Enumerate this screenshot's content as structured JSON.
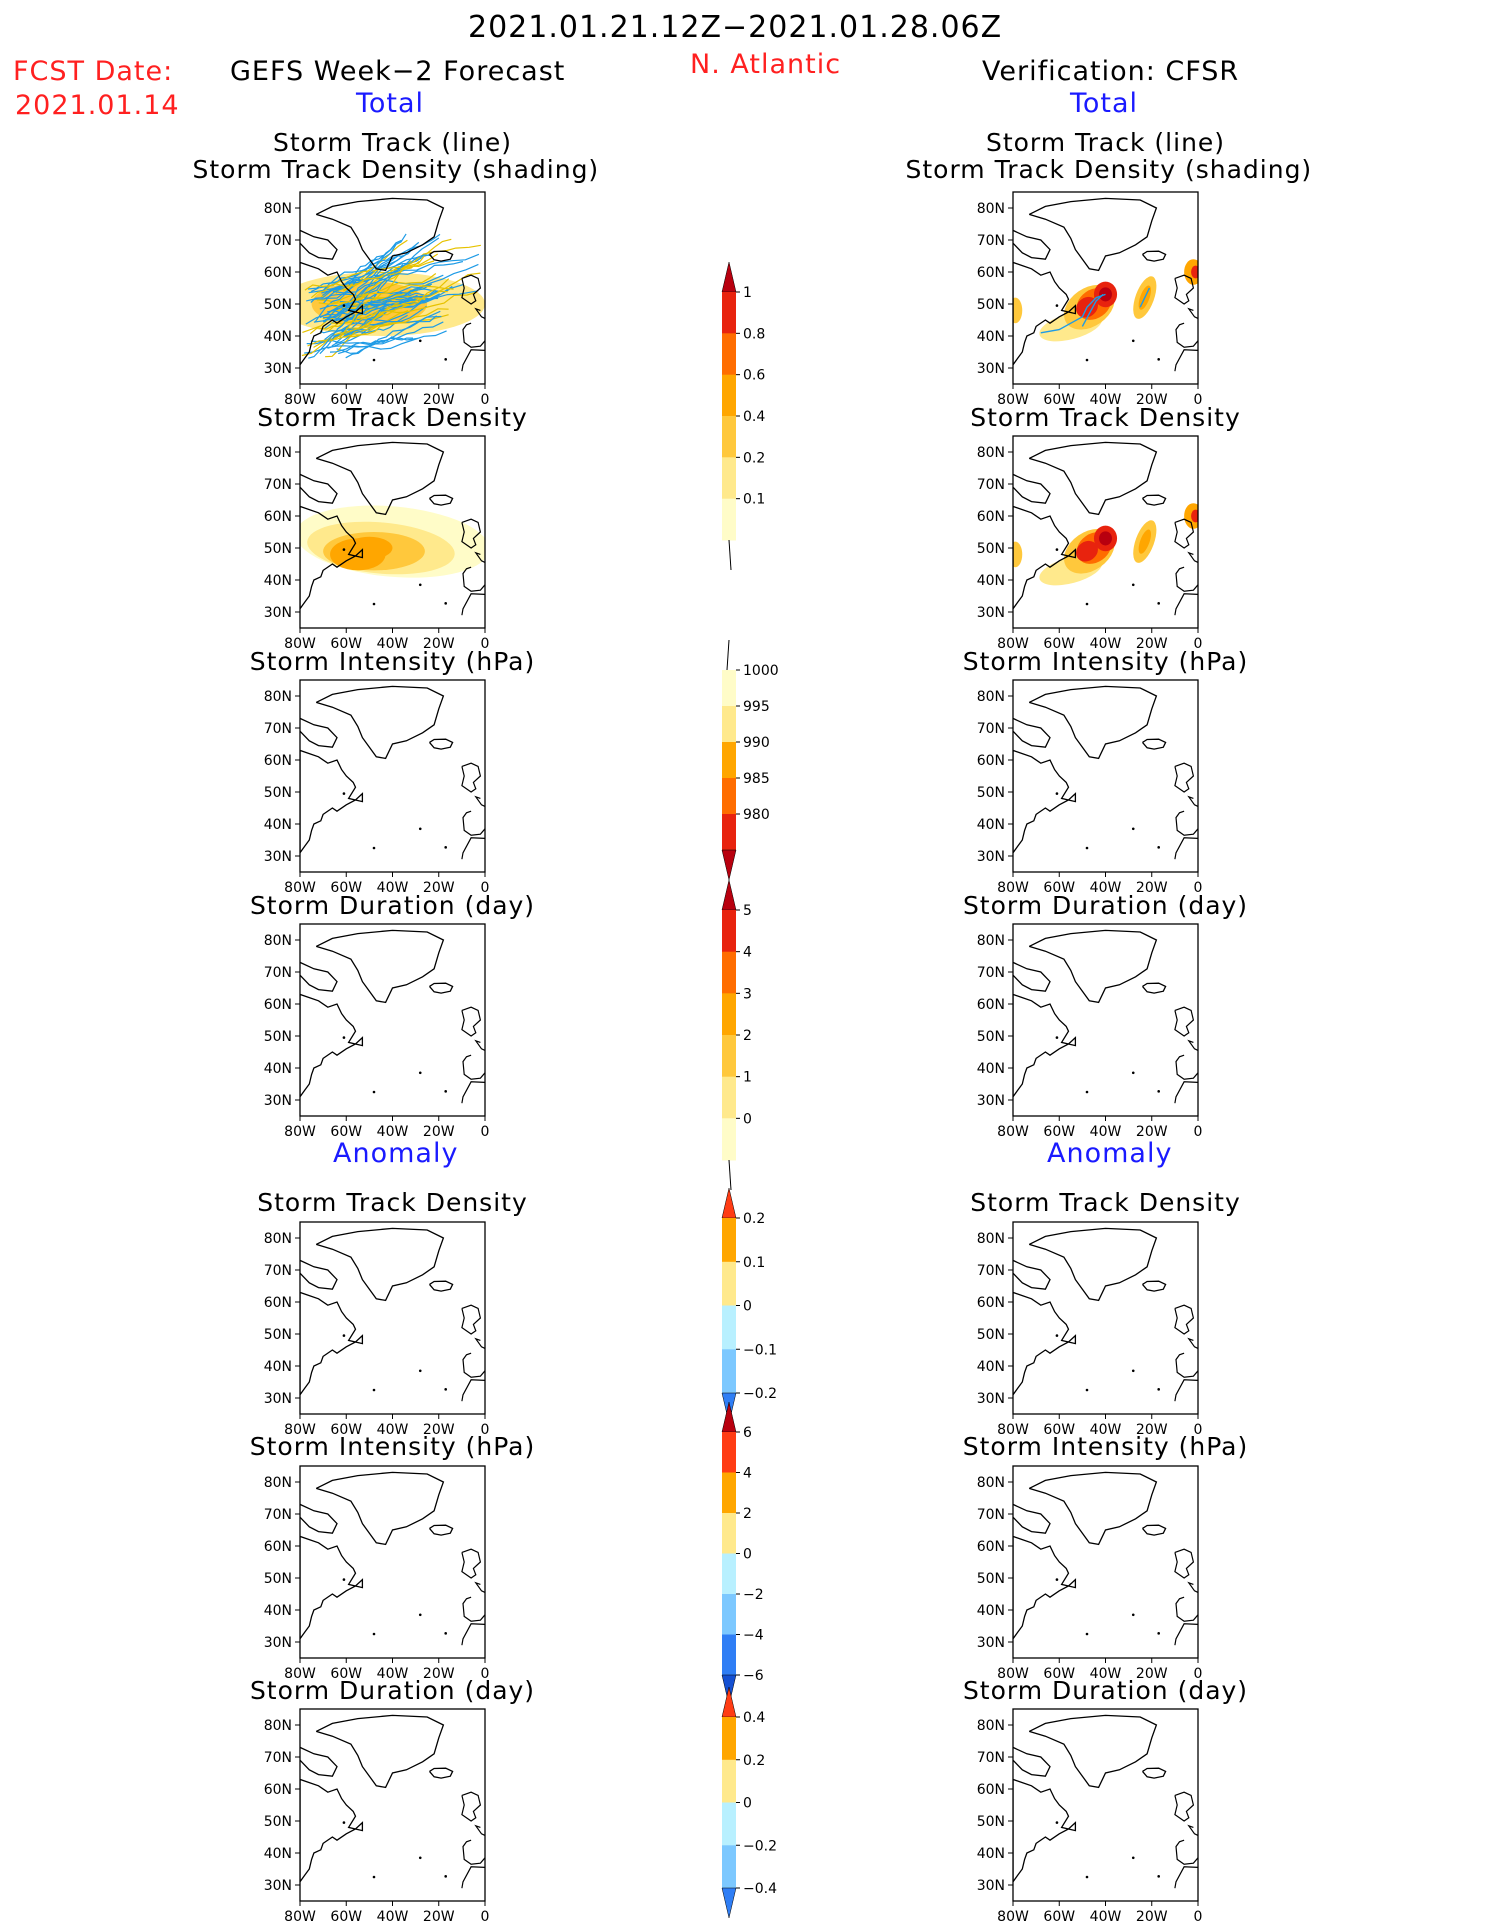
{
  "header": {
    "period": "2021.01.21.12Z−2021.01.28.06Z",
    "fcst_label": "FCST Date:",
    "fcst_date": "2021.01.14",
    "forecast_title": "GEFS Week−2 Forecast",
    "region": "N. Atlantic",
    "verification_title": "Verification: CFSR"
  },
  "sections": {
    "total": "Total",
    "anomaly": "Anomaly"
  },
  "axes": {
    "lat_ticks": [
      "80N",
      "70N",
      "60N",
      "50N",
      "40N",
      "30N"
    ],
    "lon_ticks": [
      "80W",
      "60W",
      "40W",
      "20W",
      "0"
    ]
  },
  "panels": {
    "left": [
      {
        "title": [
          "Storm Track (line)",
          "Storm Track Density (shading)"
        ],
        "field": "track_lines"
      },
      {
        "title": [
          "Storm Track Density"
        ],
        "field": "density"
      },
      {
        "title": [
          "Storm Intensity (hPa)"
        ],
        "field": "intensity"
      },
      {
        "title": [
          "Storm Duration (day)"
        ],
        "field": "duration"
      },
      {
        "title": [
          "Storm Track Density"
        ],
        "field": "density_anomaly"
      },
      {
        "title": [
          "Storm Intensity (hPa)"
        ],
        "field": "intensity_anomaly"
      },
      {
        "title": [
          "Storm Duration (day)"
        ],
        "field": "duration_anomaly"
      }
    ],
    "right": [
      {
        "title": [
          "Storm Track (line)",
          "Storm Track Density (shading)"
        ],
        "field": "track_lines"
      },
      {
        "title": [
          "Storm Track Density"
        ],
        "field": "density"
      },
      {
        "title": [
          "Storm Intensity (hPa)"
        ],
        "field": "intensity"
      },
      {
        "title": [
          "Storm Duration (day)"
        ],
        "field": "duration"
      },
      {
        "title": [
          "Storm Track Density"
        ],
        "field": "density_anomaly"
      },
      {
        "title": [
          "Storm Intensity (hPa)"
        ],
        "field": "intensity_anomaly"
      },
      {
        "title": [
          "Storm Duration (day)"
        ],
        "field": "duration_anomaly"
      }
    ]
  },
  "colorbars": [
    {
      "labels": [
        "1",
        "0.8",
        "0.6",
        "0.4",
        "0.2",
        "0.1"
      ],
      "colors": [
        "#b8000f",
        "#e8230e",
        "#ff6d00",
        "#ffa600",
        "#ffc83c",
        "#ffe98c",
        "#fffcc8"
      ],
      "top_arrow": true,
      "bottom_arrow": false
    },
    {
      "labels": [
        "1000",
        "995",
        "990",
        "985",
        "980"
      ],
      "colors": [
        "#fffcc8",
        "#ffe98c",
        "#ffa600",
        "#ff6d00",
        "#e8230e",
        "#b8000f"
      ],
      "top_arrow": false,
      "bottom_arrow": true
    },
    {
      "labels": [
        "5",
        "4",
        "3",
        "2",
        "1",
        "0"
      ],
      "colors": [
        "#b8000f",
        "#e8230e",
        "#ff6d00",
        "#ffa600",
        "#ffc83c",
        "#ffe98c",
        "#fffcc8"
      ],
      "top_arrow": true,
      "bottom_arrow": false
    },
    {
      "labels": [
        "0.2",
        "0.1",
        "0",
        "−0.1",
        "−0.2"
      ],
      "colors": [
        "#ff3c14",
        "#ffa600",
        "#ffe98c",
        "#b8f0ff",
        "#7cc8ff",
        "#2f7ef5"
      ],
      "top_arrow": true,
      "bottom_arrow": true
    },
    {
      "labels": [
        "6",
        "4",
        "2",
        "0",
        "−2",
        "−4",
        "−6"
      ],
      "colors": [
        "#b8000f",
        "#ff3c14",
        "#ffa600",
        "#ffe98c",
        "#b8f0ff",
        "#7cc8ff",
        "#2f7ef5",
        "#1450d2"
      ],
      "top_arrow": true,
      "bottom_arrow": true
    },
    {
      "labels": [
        "0.4",
        "0.2",
        "0",
        "−0.2",
        "−0.4"
      ],
      "colors": [
        "#ff3c14",
        "#ffa600",
        "#ffe98c",
        "#b8f0ff",
        "#7cc8ff",
        "#2f7ef5"
      ],
      "top_arrow": true,
      "bottom_arrow": true
    }
  ]
}
